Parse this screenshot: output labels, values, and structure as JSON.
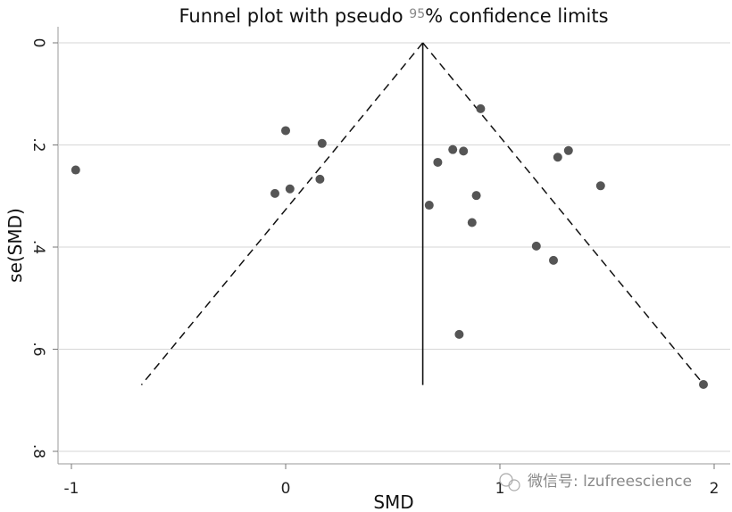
{
  "chart_data": {
    "type": "scatter",
    "title_prefix": "Funnel plot with pseudo ",
    "title_sup": "95",
    "title_suffix": "% confidence limits",
    "xlabel": "SMD",
    "ylabel": "se(SMD)",
    "xlim": [
      -1.02,
      2.05
    ],
    "ylim": [
      0,
      0.82
    ],
    "y_reversed": true,
    "x_ticks": [
      {
        "value": -1,
        "label": "-1"
      },
      {
        "value": 0,
        "label": "0"
      },
      {
        "value": 1,
        "label": "1"
      },
      {
        "value": 2,
        "label": "2"
      }
    ],
    "y_ticks": [
      {
        "value": 0,
        "label": "0"
      },
      {
        "value": 0.2,
        "label": ".2"
      },
      {
        "value": 0.4,
        "label": ".4"
      },
      {
        "value": 0.6,
        "label": ".6"
      },
      {
        "value": 0.8,
        "label": ".8"
      }
    ],
    "grid": "horizontal",
    "pooled_smd": 0.64,
    "max_se": 0.67,
    "points": [
      {
        "x": -0.98,
        "y": 0.249
      },
      {
        "x": 0.0,
        "y": 0.172
      },
      {
        "x": 0.17,
        "y": 0.197
      },
      {
        "x": -0.05,
        "y": 0.295
      },
      {
        "x": 0.02,
        "y": 0.286
      },
      {
        "x": 0.16,
        "y": 0.267
      },
      {
        "x": 0.91,
        "y": 0.129
      },
      {
        "x": 0.78,
        "y": 0.209
      },
      {
        "x": 0.83,
        "y": 0.212
      },
      {
        "x": 0.71,
        "y": 0.234
      },
      {
        "x": 0.67,
        "y": 0.318
      },
      {
        "x": 0.89,
        "y": 0.299
      },
      {
        "x": 0.87,
        "y": 0.352
      },
      {
        "x": 0.81,
        "y": 0.571
      },
      {
        "x": 1.27,
        "y": 0.224
      },
      {
        "x": 1.32,
        "y": 0.211
      },
      {
        "x": 1.47,
        "y": 0.28
      },
      {
        "x": 1.17,
        "y": 0.398
      },
      {
        "x": 1.25,
        "y": 0.426
      },
      {
        "x": 1.95,
        "y": 0.669
      }
    ]
  },
  "watermark": "微信号: lzufreescience"
}
